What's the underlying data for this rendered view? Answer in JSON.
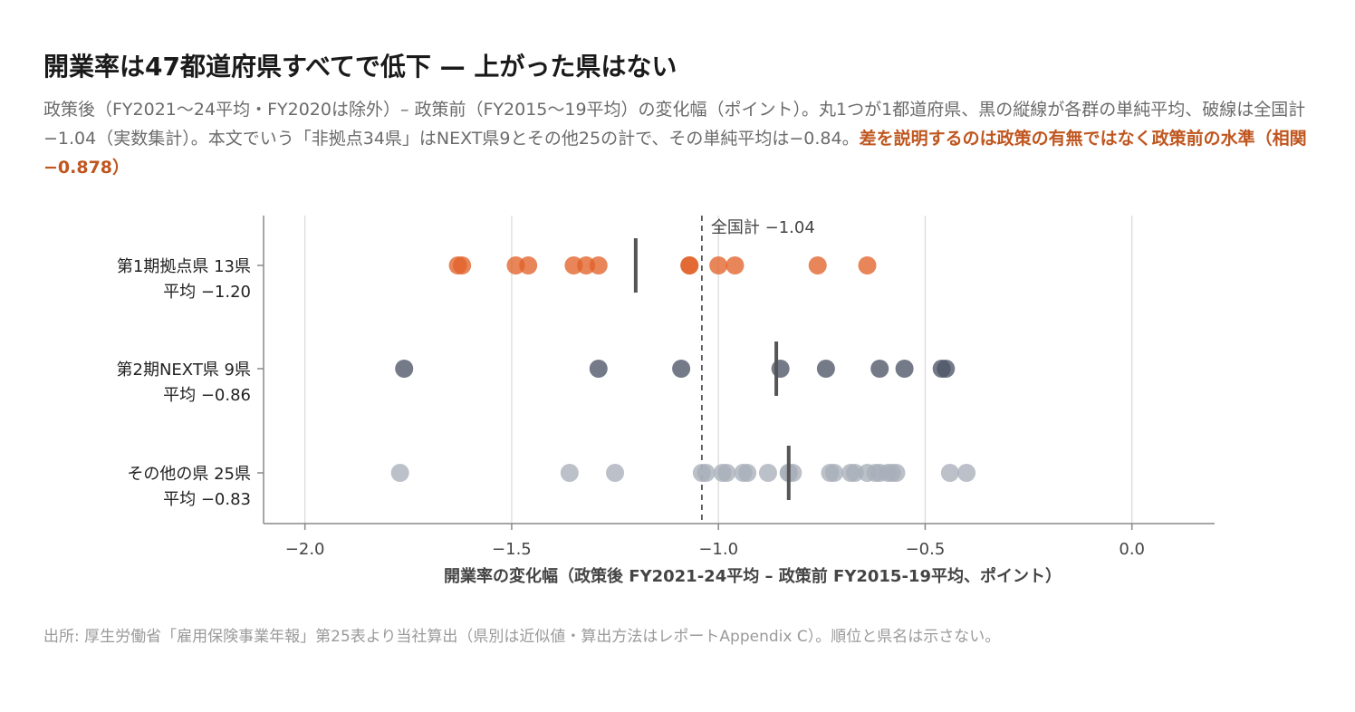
{
  "title": "開業率は47都道府県すべてで低下 — 上がった県はない",
  "subtitle": {
    "text": "政策後（FY2021〜24平均・FY2020は除外）– 政策前（FY2015〜19平均）の変化幅（ポイント）。丸1つが1都道府県、黒の縦線が各群の単純平均、破線は全国計−1.04（実数集計）。本文でいう「非拠点34県」はNEXT県9とその他25の計で、その単純平均は−0.84。",
    "highlight": "差を説明するのは政策の有無ではなく政策前の水準（相関 −0.878）"
  },
  "source": "出所: 厚生労働省「雇用保険事業年報」第25表より当社算出（県別は近似値・算出方法はレポートAppendix C）。順位と県名は示さない。",
  "colors": {
    "group1": "#e2632a",
    "group2": "#4d5566",
    "group3": "#a9afba",
    "mean_line": "#555555",
    "grid": "#d9d9d9",
    "axis": "#888888"
  },
  "chart_data": {
    "type": "scatter",
    "xlabel": "開業率の変化幅（政策後 FY2021-24平均 – 政策前 FY2015-19平均、ポイント）",
    "xlim": [
      -2.1,
      0.2
    ],
    "xticks": [
      -2.0,
      -1.5,
      -1.0,
      -0.5,
      0.0
    ],
    "xtick_labels": [
      "−2.0",
      "−1.5",
      "−1.0",
      "−0.5",
      "0.0"
    ],
    "grid": "vertical",
    "reference": {
      "value": -1.04,
      "label": "全国計 −1.04"
    },
    "series": [
      {
        "name": "第1期拠点県 13県",
        "mean_label": "平均 −1.20",
        "mean": -1.2,
        "color_key": "group1",
        "values": [
          -1.63,
          -1.62,
          -1.49,
          -1.46,
          -1.35,
          -1.32,
          -1.29,
          -1.07,
          -1.07,
          -1.0,
          -0.96,
          -0.76,
          -0.64
        ]
      },
      {
        "name": "第2期NEXT県 9県",
        "mean_label": "平均 −0.86",
        "mean": -0.86,
        "color_key": "group2",
        "values": [
          -1.76,
          -1.29,
          -1.09,
          -0.85,
          -0.74,
          -0.61,
          -0.55,
          -0.46,
          -0.45
        ]
      },
      {
        "name": "その他の県 25県",
        "mean_label": "平均 −0.83",
        "mean": -0.83,
        "color_key": "group3",
        "values": [
          -1.77,
          -1.36,
          -1.25,
          -1.04,
          -1.03,
          -0.99,
          -0.98,
          -0.94,
          -0.93,
          -0.88,
          -0.83,
          -0.82,
          -0.73,
          -0.72,
          -0.68,
          -0.67,
          -0.64,
          -0.62,
          -0.61,
          -0.59,
          -0.58,
          -0.57,
          -0.44,
          -0.4,
          -0.83
        ]
      }
    ]
  }
}
